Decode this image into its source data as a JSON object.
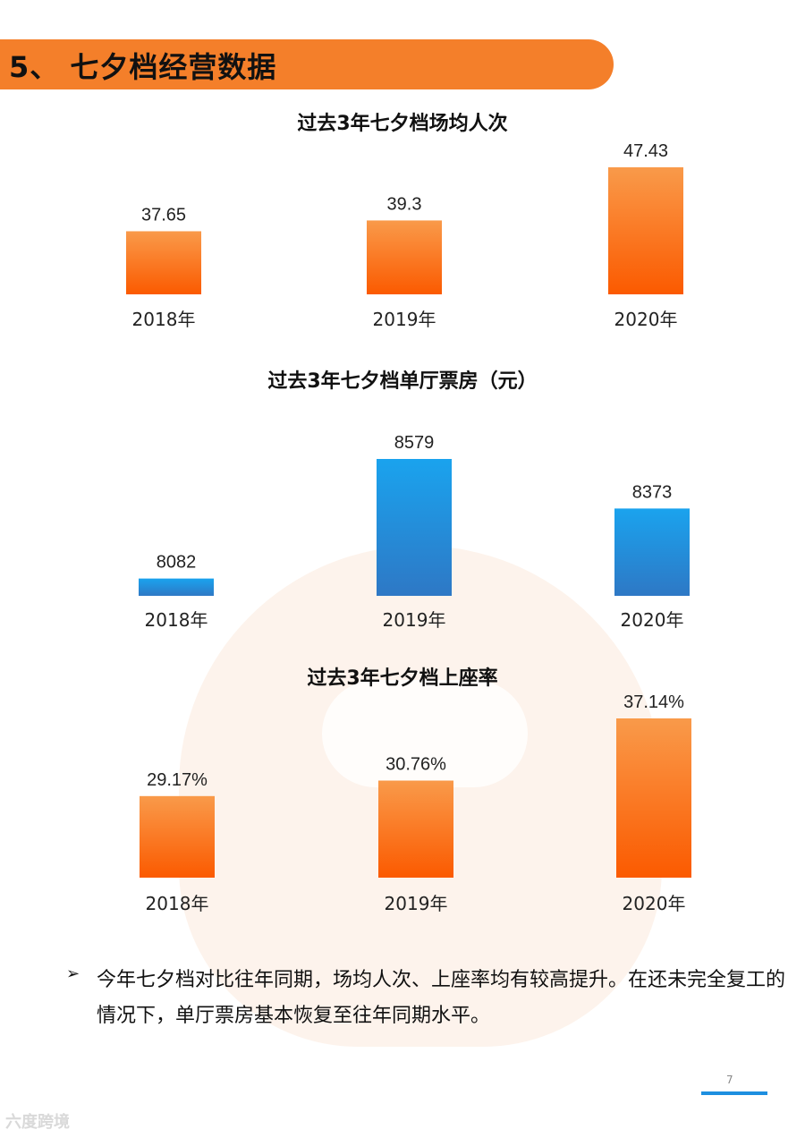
{
  "section": {
    "title": "5、 七夕档经营数据"
  },
  "chart_data": [
    {
      "type": "bar",
      "title": "过去3年七夕档场均人次",
      "categories": [
        "2018年",
        "2019年",
        "2020年"
      ],
      "values": [
        37.65,
        39.3,
        47.43
      ],
      "value_labels": [
        "37.65",
        "39.3",
        "47.43"
      ],
      "color_top": "#f99a4a",
      "color_bottom": "#fb5a00",
      "grid": false
    },
    {
      "type": "bar",
      "title": "过去3年七夕档单厅票房（元）",
      "categories": [
        "2018年",
        "2019年",
        "2020年"
      ],
      "values": [
        8082,
        8579,
        8373
      ],
      "value_labels": [
        "8082",
        "8579",
        "8373"
      ],
      "color_top": "#1aa3ee",
      "color_bottom": "#2e78c5",
      "grid": false
    },
    {
      "type": "bar",
      "title": "过去3年七夕档上座率",
      "categories": [
        "2018年",
        "2019年",
        "2020年"
      ],
      "values": [
        29.17,
        30.76,
        37.14
      ],
      "value_labels": [
        "29.17%",
        "30.76%",
        "37.14%"
      ],
      "color_top": "#f99a4a",
      "color_bottom": "#fb5a00",
      "grid": false
    }
  ],
  "summary": {
    "bullet": "➢",
    "text": "今年七夕档对比往年同期，场均人次、上座率均有较高提升。在还未完全复工的情况下，单厅票房基本恢复至往年同期水平。"
  },
  "footer": {
    "page_number": "7",
    "logo_text": "六度跨境"
  },
  "colors": {
    "banner": "#f47f2a",
    "page_line": "#1d8fe0"
  }
}
